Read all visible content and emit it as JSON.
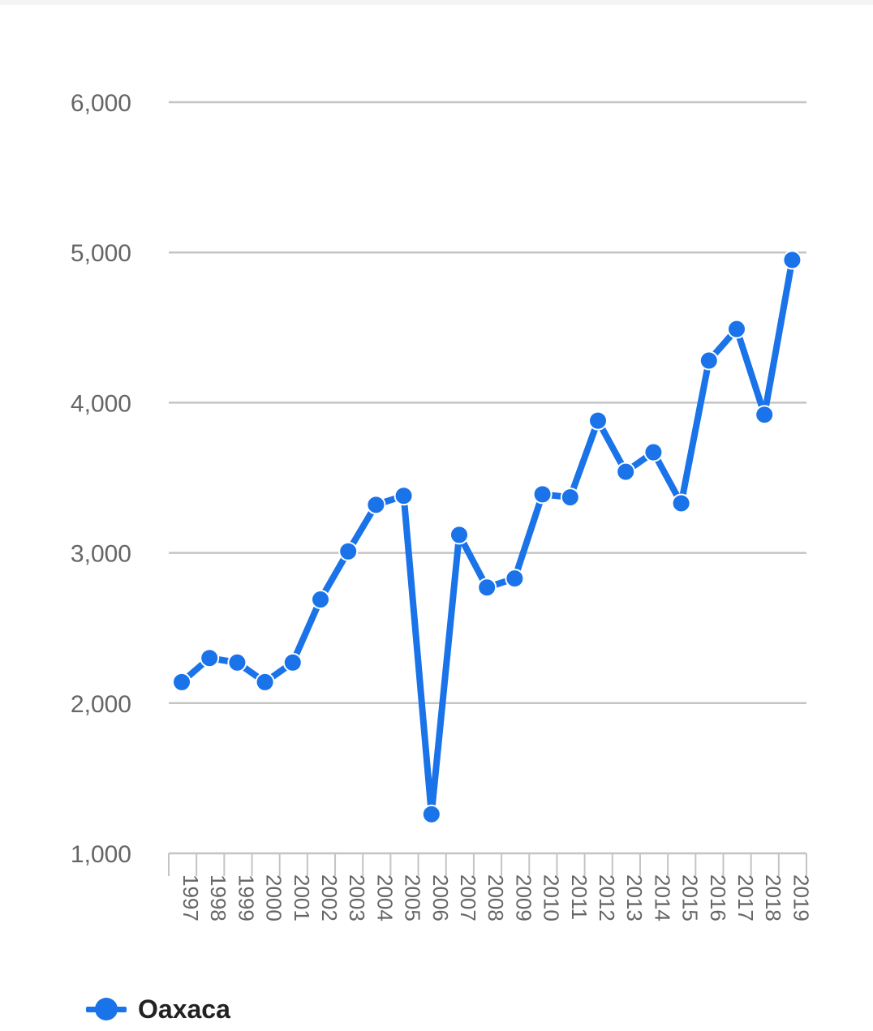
{
  "chart_data": {
    "type": "line",
    "title": "",
    "xlabel": "",
    "ylabel": "",
    "categories": [
      "1997",
      "1998",
      "1999",
      "2000",
      "2001",
      "2002",
      "2003",
      "2004",
      "2005",
      "2006",
      "2007",
      "2008",
      "2009",
      "2010",
      "2011",
      "2012",
      "2013",
      "2014",
      "2015",
      "2016",
      "2017",
      "2018",
      "2019"
    ],
    "series": [
      {
        "name": "Oaxaca",
        "color": "#1a73e8",
        "values": [
          2140,
          2300,
          2270,
          2140,
          2270,
          2690,
          3010,
          3320,
          3380,
          1260,
          3120,
          2770,
          2830,
          3390,
          3370,
          3880,
          3540,
          3670,
          3330,
          4280,
          4490,
          3920,
          4950
        ]
      }
    ],
    "ylim": [
      1000,
      6000
    ],
    "yticks": [
      1000,
      2000,
      3000,
      4000,
      5000,
      6000
    ],
    "ytick_labels": [
      "1,000",
      "2,000",
      "3,000",
      "4,000",
      "5,000",
      "6,000"
    ],
    "grid": true,
    "legend_position": "bottom-left"
  }
}
